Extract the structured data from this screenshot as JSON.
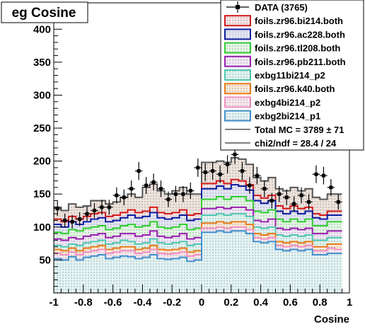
{
  "chart_data": {
    "type": "histogram",
    "title": "eg Cosine",
    "xlabel": "Cosine",
    "ylabel": "",
    "xlim": [
      -1,
      0.95
    ],
    "ylim": [
      0,
      440
    ],
    "x_ticks": [
      "-1",
      "-0.8",
      "-0.6",
      "-0.4",
      "-0.2",
      "0",
      "0.2",
      "0.4",
      "0.6",
      "0.8",
      "1"
    ],
    "x_tick_values": [
      -1,
      -0.8,
      -0.6,
      -0.4,
      -0.2,
      0,
      0.2,
      0.4,
      0.6,
      0.8,
      1
    ],
    "y_ticks": [
      "50",
      "100",
      "150",
      "200",
      "250",
      "300",
      "350",
      "400"
    ],
    "y_tick_values": [
      50,
      100,
      150,
      200,
      250,
      300,
      350,
      400
    ],
    "bin_edges": [
      -1,
      -0.95,
      -0.9,
      -0.85,
      -0.8,
      -0.75,
      -0.7,
      -0.65,
      -0.6,
      -0.55,
      -0.5,
      -0.45,
      -0.4,
      -0.35,
      -0.3,
      -0.25,
      -0.2,
      -0.15,
      -0.1,
      -0.05,
      0,
      0.05,
      0.1,
      0.15,
      0.2,
      0.25,
      0.3,
      0.35,
      0.4,
      0.45,
      0.5,
      0.55,
      0.6,
      0.65,
      0.7,
      0.75,
      0.8,
      0.85,
      0.9,
      0.95
    ],
    "stack_order_note": "cumulative stacked totals, bottom to top",
    "series": [
      {
        "name": "exbg2bi214_p1",
        "color": "#3f8fcf",
        "fill": "#e4f4f4",
        "values": [
          52,
          50,
          55,
          50,
          54,
          56,
          58,
          52,
          54,
          56,
          55,
          52,
          54,
          58,
          52,
          51,
          52,
          54,
          48,
          50,
          92,
          92,
          94,
          92,
          94,
          94,
          90,
          78,
          76,
          78,
          66,
          64,
          66,
          64,
          66,
          58,
          58,
          60,
          60
        ]
      },
      {
        "name": "exbg4bi214_p2",
        "color": "#f08fc0",
        "fill": "#fbe8ef",
        "values": [
          60,
          58,
          62,
          58,
          62,
          64,
          66,
          60,
          62,
          64,
          64,
          60,
          62,
          66,
          60,
          59,
          60,
          62,
          56,
          58,
          98,
          98,
          100,
          98,
          100,
          100,
          96,
          84,
          82,
          84,
          72,
          70,
          72,
          70,
          72,
          64,
          64,
          68,
          66
        ]
      },
      {
        "name": "foils.zr96.k40.both",
        "color": "#e87a1a",
        "fill": "#fbe9d6",
        "values": [
          66,
          64,
          68,
          64,
          68,
          70,
          72,
          66,
          68,
          70,
          70,
          66,
          68,
          72,
          66,
          65,
          66,
          68,
          62,
          64,
          106,
          106,
          108,
          106,
          108,
          108,
          104,
          90,
          88,
          90,
          78,
          76,
          78,
          76,
          78,
          70,
          70,
          74,
          74
        ]
      },
      {
        "name": "exbg11bi214_p2",
        "color": "#4fc8b0",
        "fill": "#e0f4f0",
        "values": [
          72,
          70,
          74,
          72,
          76,
          78,
          80,
          74,
          76,
          80,
          78,
          74,
          76,
          82,
          76,
          74,
          76,
          78,
          72,
          74,
          118,
          118,
          120,
          118,
          120,
          120,
          116,
          100,
          98,
          100,
          88,
          86,
          88,
          86,
          88,
          80,
          80,
          84,
          84
        ]
      },
      {
        "name": "foils.zr96.pb211.both",
        "color": "#9a1fb0",
        "fill": "#f3e6f6",
        "values": [
          82,
          80,
          84,
          82,
          86,
          88,
          90,
          84,
          86,
          90,
          90,
          86,
          88,
          94,
          86,
          84,
          86,
          90,
          82,
          84,
          128,
          128,
          130,
          128,
          130,
          130,
          126,
          110,
          108,
          112,
          98,
          96,
          98,
          96,
          98,
          90,
          90,
          94,
          94
        ]
      },
      {
        "name": "foils.zr96.tl208.both",
        "color": "#2fce2f",
        "fill": "#e4f7e4",
        "values": [
          92,
          90,
          96,
          94,
          98,
          100,
          102,
          96,
          98,
          102,
          104,
          100,
          102,
          108,
          100,
          98,
          100,
          104,
          96,
          98,
          142,
          142,
          146,
          142,
          146,
          146,
          140,
          124,
          122,
          126,
          112,
          108,
          112,
          108,
          112,
          102,
          102,
          108,
          108
        ]
      },
      {
        "name": "foils.zr96.ac228.both",
        "color": "#0a1aa0",
        "fill": "#e4e6f5",
        "values": [
          104,
          100,
          108,
          104,
          108,
          112,
          114,
          108,
          110,
          114,
          118,
          114,
          116,
          122,
          114,
          112,
          114,
          118,
          110,
          112,
          158,
          158,
          162,
          158,
          164,
          162,
          156,
          140,
          136,
          140,
          124,
          120,
          124,
          120,
          124,
          114,
          112,
          118,
          118
        ]
      },
      {
        "name": "foils.zr96.bi214.both",
        "color": "#d41a1a",
        "fill": "#f8e4e4",
        "values": [
          112,
          108,
          116,
          112,
          116,
          120,
          122,
          116,
          118,
          122,
          126,
          122,
          124,
          130,
          122,
          120,
          122,
          126,
          118,
          120,
          166,
          166,
          170,
          166,
          172,
          170,
          164,
          148,
          144,
          148,
          132,
          128,
          132,
          128,
          130,
          120,
          118,
          124,
          124
        ]
      },
      {
        "name": "Total MC",
        "color": "#555555",
        "fill": "#efe3dc",
        "values": [
          130,
          125,
          135,
          130,
          132,
          140,
          140,
          135,
          138,
          145,
          150,
          145,
          160,
          165,
          155,
          150,
          155,
          160,
          150,
          150,
          198,
          198,
          200,
          198,
          205,
          203,
          195,
          175,
          170,
          175,
          158,
          155,
          160,
          155,
          158,
          145,
          142,
          150,
          150
        ]
      },
      {
        "name": "DATA (3765)",
        "color": "#000000",
        "values": [
          128,
          110,
          108,
          112,
          120,
          125,
          130,
          130,
          148,
          145,
          158,
          185,
          163,
          168,
          158,
          142,
          150,
          150,
          155,
          190,
          183,
          185,
          180,
          195,
          210,
          185,
          163,
          178,
          158,
          140,
          150,
          145,
          135,
          148,
          138,
          180,
          178,
          160,
          138
        ]
      }
    ],
    "legend": {
      "placement": "top-right",
      "entries": [
        {
          "label": "DATA (3765)",
          "kind": "marker"
        },
        {
          "label": "foils.zr96.bi214.both",
          "kind": "box",
          "color": "#d41a1a",
          "fill": "#f8e4e4"
        },
        {
          "label": "foils.zr96.ac228.both",
          "kind": "box",
          "color": "#0a1aa0",
          "fill": "#e4e6f5"
        },
        {
          "label": "foils.zr96.tl208.both",
          "kind": "box",
          "color": "#2fce2f",
          "fill": "#e4f7e4"
        },
        {
          "label": "foils.zr96.pb211.both",
          "kind": "box",
          "color": "#9a1fb0",
          "fill": "#f3e6f6"
        },
        {
          "label": "exbg11bi214_p2",
          "kind": "box",
          "color": "#4fc8b0",
          "fill": "#e0f4f0"
        },
        {
          "label": "foils.zr96.k40.both",
          "kind": "box",
          "color": "#e87a1a",
          "fill": "#fbe9d6"
        },
        {
          "label": "exbg4bi214_p2",
          "kind": "box",
          "color": "#f08fc0",
          "fill": "#fbe8ef"
        },
        {
          "label": "exbg2bi214_p1",
          "kind": "box",
          "color": "#3f8fcf",
          "fill": "#e4f4f4"
        },
        {
          "label": "Total MC = 3789 ± 71",
          "kind": "line",
          "color": "#555555"
        },
        {
          "label": "chi2/ndf = 28.4 / 24",
          "kind": "line",
          "color": "#555555"
        }
      ]
    },
    "grid": false
  }
}
